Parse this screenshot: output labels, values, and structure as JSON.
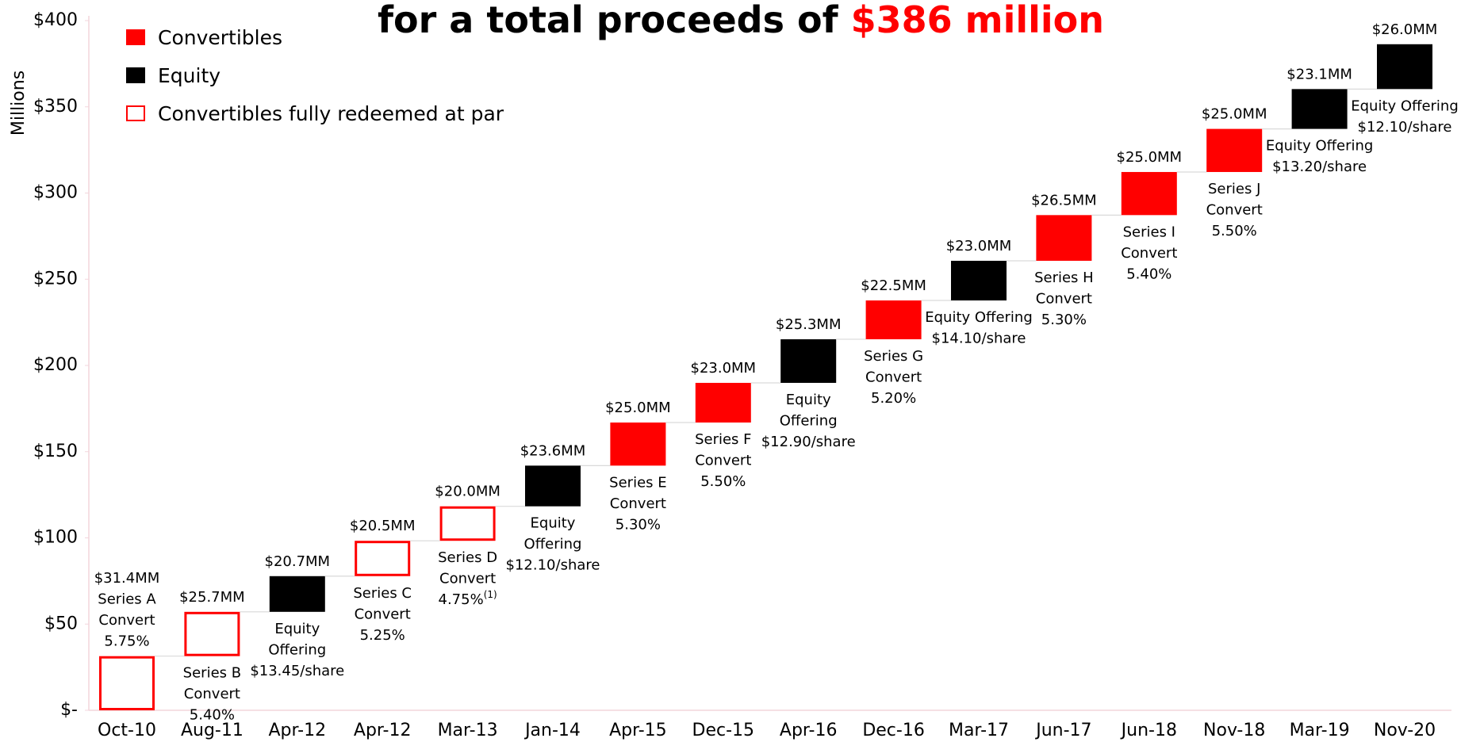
{
  "chart_data": {
    "type": "waterfall",
    "title": [
      "for a total proceeds of ",
      "$386 million"
    ],
    "title_colors": [
      "#000000",
      "#ff0000"
    ],
    "y_label": "Millions",
    "legend": [
      {
        "name": "Convertibles",
        "color": "#ff0000",
        "fill": "#ff0000"
      },
      {
        "name": "Equity",
        "color": "#000000",
        "fill": "#000000"
      },
      {
        "name": "Convertibles fully redeemed at par",
        "color": "#ff0000",
        "fill": "#ffffff"
      }
    ],
    "categories": [
      "Oct-10",
      "Aug-11",
      "Apr-12",
      "Apr-12",
      "Mar-13",
      "Jan-14",
      "Apr-15",
      "Dec-15",
      "Apr-16",
      "Dec-16",
      "Mar-17",
      "Jun-17",
      "Jun-18",
      "Nov-18",
      "Mar-19",
      "Nov-20"
    ],
    "values": [
      31.4,
      25.7,
      20.7,
      20.5,
      20.0,
      23.6,
      25.0,
      23.0,
      25.3,
      22.5,
      23.0,
      26.5,
      25.0,
      25.0,
      23.1,
      26.0
    ],
    "value_labels": [
      "$31.4MM",
      "$25.7MM",
      "$20.7MM",
      "$20.5MM",
      "$20.0MM",
      "$23.6MM",
      "$25.0MM",
      "$23.0MM",
      "$25.3MM",
      "$22.5MM",
      "$23.0MM",
      "$26.5MM",
      "$25.0MM",
      "$25.0MM",
      "$23.1MM",
      "$26.0MM"
    ],
    "colors": [
      "#ff0000",
      "#ff0000",
      "#000000",
      "#ff0000",
      "#ff0000",
      "#000000",
      "#ff0000",
      "#ff0000",
      "#000000",
      "#ff0000",
      "#000000",
      "#ff0000",
      "#ff0000",
      "#ff0000",
      "#000000",
      "#000000"
    ],
    "fills": [
      "#ffffff",
      "#ffffff",
      "#000000",
      "#ffffff",
      "#ffffff",
      "#000000",
      "#ff0000",
      "#ff0000",
      "#000000",
      "#ff0000",
      "#000000",
      "#ff0000",
      "#ff0000",
      "#ff0000",
      "#000000",
      "#000000"
    ],
    "descriptions": [
      [
        "Series A",
        "Convert",
        "5.75%"
      ],
      [
        "Series B",
        "Convert",
        "5.40%"
      ],
      [
        "Equity",
        "Offering",
        "$13.45/share"
      ],
      [
        "Series C",
        "Convert",
        "5.25%"
      ],
      [
        "Series D",
        "Convert",
        "4.75%"
      ],
      [
        "Equity",
        "Offering",
        "$12.10/share"
      ],
      [
        "Series E",
        "Convert",
        "5.30%"
      ],
      [
        "Series F",
        "Convert",
        "5.50%"
      ],
      [
        "Equity",
        "Offering",
        "$12.90/share"
      ],
      [
        "Series G",
        "Convert",
        "5.20%"
      ],
      [
        "Equity Offering",
        "$14.10/share"
      ],
      [
        "Series H",
        "Convert",
        "5.30%"
      ],
      [
        "Series I",
        "Convert",
        "5.40%"
      ],
      [
        "Series J",
        "Convert",
        "5.50%"
      ],
      [
        "Equity Offering",
        "$13.20/share"
      ],
      [
        "Equity Offering",
        "$12.10/share"
      ]
    ],
    "footnote": {
      "bar": 4,
      "text": "(1)"
    },
    "ylim": [
      0,
      400
    ],
    "yticks": [
      {
        "value": 0,
        "label": "$-"
      },
      {
        "value": 50,
        "label": "$50"
      },
      {
        "value": 100,
        "label": "$100"
      },
      {
        "value": 150,
        "label": "$150"
      },
      {
        "value": 200,
        "label": "$200"
      },
      {
        "value": 250,
        "label": "$250"
      },
      {
        "value": 300,
        "label": "$300"
      },
      {
        "value": 350,
        "label": "$350"
      },
      {
        "value": 400,
        "label": "$400"
      }
    ]
  }
}
